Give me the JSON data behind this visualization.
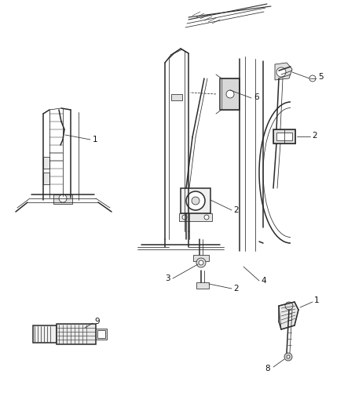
{
  "background_color": "#ffffff",
  "fig_width": 4.38,
  "fig_height": 5.33,
  "dpi": 100,
  "line_color": "#2a2a2a",
  "label_color": "#111111",
  "label_fs": 7.5,
  "lw_main": 1.1,
  "lw_thin": 0.55,
  "lw_med": 0.8
}
